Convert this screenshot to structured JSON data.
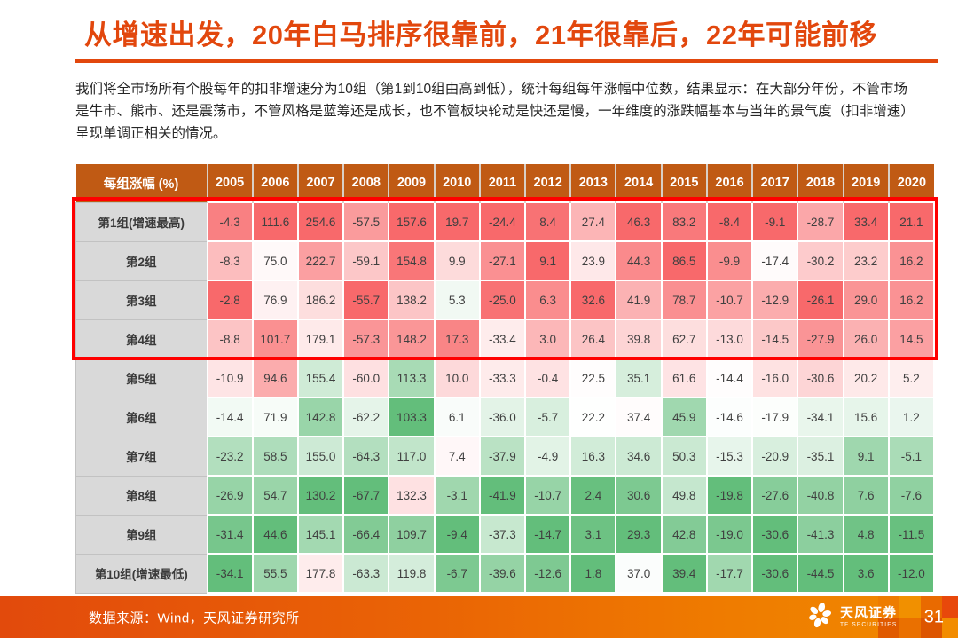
{
  "slide": {
    "title": "从增速出发，20年白马排序很靠前，21年很靠后，22年可能前移",
    "paragraph": "我们将全市场所有个股每年的扣非增速分为10组（第1到10组由高到低），统计每组每年涨幅中位数，结果显示：在大部分年份，不管市场是牛市、熊市、还是震荡市，不管风格是蓝筹还是成长，也不管板块轮动是快还是慢，一年维度的涨跌幅基本与当年的景气度（扣非增速）呈现单调正相关的情况。",
    "accent_color": "#E2470D"
  },
  "chart_data": {
    "type": "heatmap",
    "title": "每组涨幅 (%)",
    "columns": [
      "2005",
      "2006",
      "2007",
      "2008",
      "2009",
      "2010",
      "2011",
      "2012",
      "2013",
      "2014",
      "2015",
      "2016",
      "2017",
      "2018",
      "2019",
      "2020"
    ],
    "rows": [
      {
        "label": "第1组(增速最高)",
        "values": [
          -4.3,
          111.6,
          254.6,
          -57.5,
          157.6,
          19.7,
          -24.4,
          8.4,
          27.4,
          46.3,
          83.2,
          -8.4,
          -9.1,
          -28.7,
          33.4,
          21.1
        ]
      },
      {
        "label": "第2组",
        "values": [
          -8.3,
          75.0,
          222.7,
          -59.1,
          154.8,
          9.9,
          -27.1,
          9.1,
          23.9,
          44.3,
          86.5,
          -9.9,
          -17.4,
          -30.2,
          23.2,
          16.2
        ]
      },
      {
        "label": "第3组",
        "values": [
          -2.8,
          76.9,
          186.2,
          -55.7,
          138.2,
          5.3,
          -25.0,
          6.3,
          32.6,
          41.9,
          78.7,
          -10.7,
          -12.9,
          -26.1,
          29.0,
          16.2
        ]
      },
      {
        "label": "第4组",
        "values": [
          -8.8,
          101.7,
          179.1,
          -57.3,
          148.2,
          17.3,
          -33.4,
          3.0,
          26.4,
          39.8,
          62.7,
          -13.0,
          -14.5,
          -27.9,
          26.0,
          14.5
        ]
      },
      {
        "label": "第5组",
        "values": [
          -10.9,
          94.6,
          155.4,
          -60.0,
          113.3,
          10.0,
          -33.3,
          -0.4,
          22.5,
          35.1,
          61.6,
          -14.4,
          -16.0,
          -30.6,
          20.2,
          5.2
        ]
      },
      {
        "label": "第6组",
        "values": [
          -14.4,
          71.9,
          142.8,
          -62.2,
          103.3,
          6.1,
          -36.0,
          -5.7,
          22.2,
          37.4,
          45.9,
          -14.6,
          -17.9,
          -34.1,
          15.6,
          1.2
        ]
      },
      {
        "label": "第7组",
        "values": [
          -23.2,
          58.5,
          155.0,
          -64.3,
          117.0,
          7.4,
          -37.9,
          -4.9,
          16.3,
          34.6,
          50.3,
          -15.3,
          -20.9,
          -35.1,
          9.1,
          -5.1
        ]
      },
      {
        "label": "第8组",
        "values": [
          -26.9,
          54.7,
          130.2,
          -67.7,
          132.3,
          -3.1,
          -41.9,
          -10.7,
          2.4,
          30.6,
          49.8,
          -19.8,
          -27.6,
          -40.8,
          7.6,
          -7.6
        ]
      },
      {
        "label": "第9组",
        "values": [
          -31.4,
          44.6,
          145.1,
          -66.4,
          109.7,
          -9.4,
          -37.3,
          -14.7,
          3.1,
          29.3,
          42.8,
          -19.0,
          -30.6,
          -41.3,
          4.8,
          -11.5
        ]
      },
      {
        "label": "第10组(增速最低)",
        "values": [
          -34.1,
          55.5,
          177.8,
          -63.3,
          119.8,
          -6.7,
          -39.6,
          -12.6,
          1.8,
          37.0,
          39.4,
          -17.7,
          -30.6,
          -44.5,
          3.6,
          -12.0
        ]
      }
    ],
    "color_scale": {
      "high_color": "#F8696B",
      "mid_color": "#FFFFFF",
      "low_color": "#63BE7B",
      "basis": "per-column value scale, white anchored at column median"
    },
    "header_bg": "#C05A14",
    "row_label_bg": "#D9D9D9",
    "highlight_box": {
      "border_color": "#FF0000",
      "rows_covered": [
        "第1组(增速最高)",
        "第2组",
        "第3组",
        "第4组"
      ]
    }
  },
  "footer": {
    "source": "数据来源：Wind，天风证券研究所",
    "logo_name": "天风证券",
    "logo_sub": "TF SECURITIES",
    "page_number": "31"
  }
}
